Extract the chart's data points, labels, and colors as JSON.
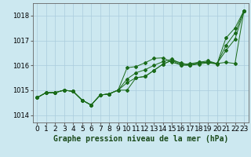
{
  "title": "Graphe pression niveau de la mer (hPa)",
  "background_color": "#cce8f0",
  "grid_color": "#aaccdd",
  "line_color": "#1a6b1a",
  "marker_color": "#1a6b1a",
  "xlim": [
    -0.5,
    23.5
  ],
  "ylim": [
    1013.7,
    1018.5
  ],
  "yticks": [
    1014,
    1015,
    1016,
    1017,
    1018
  ],
  "xticks": [
    0,
    1,
    2,
    3,
    4,
    5,
    6,
    7,
    8,
    9,
    10,
    11,
    12,
    13,
    14,
    15,
    16,
    17,
    18,
    19,
    20,
    21,
    22,
    23
  ],
  "series": [
    [
      1014.7,
      1014.9,
      1014.9,
      1015.0,
      1014.95,
      1014.6,
      1014.4,
      1014.8,
      1014.85,
      1015.0,
      1015.0,
      1015.5,
      1015.55,
      1015.8,
      1016.05,
      1016.2,
      1016.0,
      1016.0,
      1016.05,
      1016.1,
      1016.05,
      1017.1,
      1017.5,
      1018.2
    ],
    [
      1014.7,
      1014.9,
      1014.9,
      1015.0,
      1014.95,
      1014.6,
      1014.4,
      1014.8,
      1014.85,
      1015.0,
      1015.9,
      1015.95,
      1016.1,
      1016.28,
      1016.3,
      1016.12,
      1016.02,
      1016.07,
      1016.12,
      1016.12,
      1016.07,
      1016.12,
      1016.07,
      1018.2
    ],
    [
      1014.7,
      1014.9,
      1014.9,
      1015.0,
      1014.95,
      1014.6,
      1014.4,
      1014.8,
      1014.85,
      1015.0,
      1015.3,
      1015.5,
      1015.55,
      1015.8,
      1016.05,
      1016.2,
      1016.1,
      1016.0,
      1016.12,
      1016.18,
      1016.07,
      1016.6,
      1017.05,
      1018.2
    ],
    [
      1014.7,
      1014.9,
      1014.9,
      1015.0,
      1014.95,
      1014.6,
      1014.4,
      1014.8,
      1014.85,
      1015.0,
      1015.45,
      1015.7,
      1015.82,
      1016.0,
      1016.15,
      1016.25,
      1016.05,
      1016.02,
      1016.08,
      1016.14,
      1016.06,
      1016.8,
      1017.3,
      1018.2
    ]
  ],
  "figwidth": 3.2,
  "figheight": 2.0,
  "dpi": 100,
  "xlabel_fontsize": 6.5,
  "ylabel_fontsize": 6,
  "title_fontsize": 7
}
